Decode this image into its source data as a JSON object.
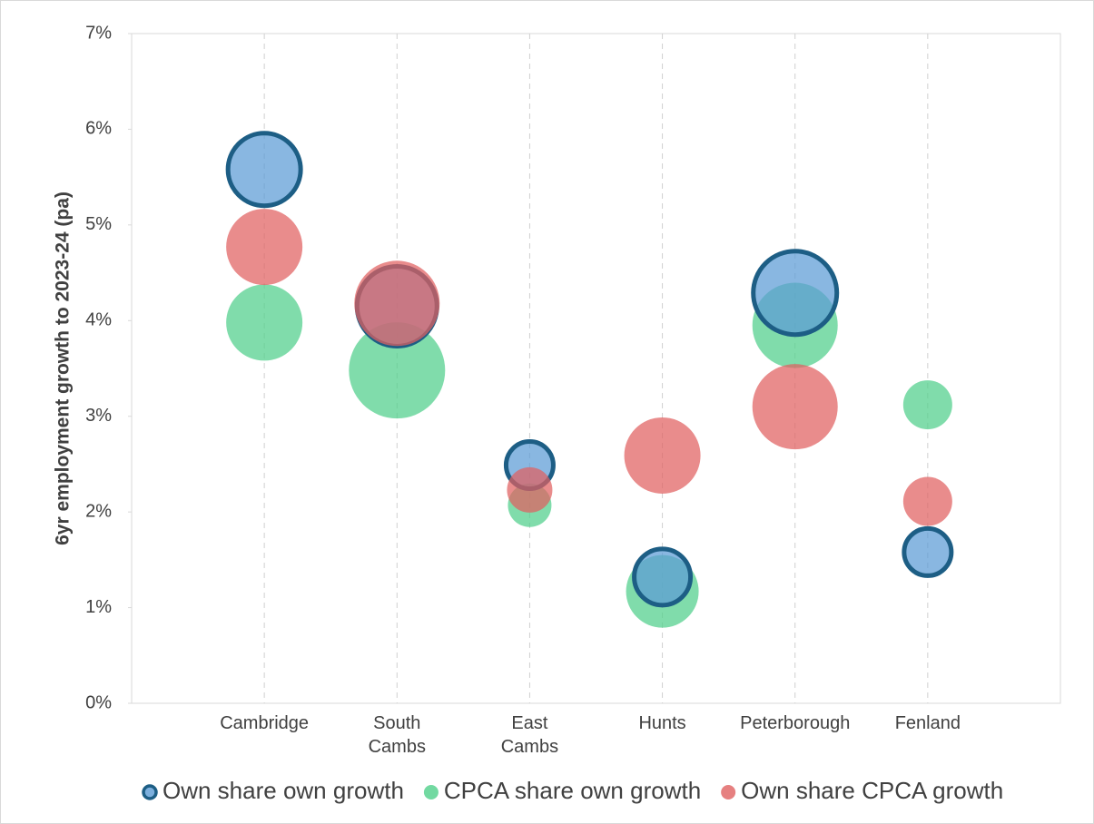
{
  "chart_data": {
    "type": "bubble",
    "y_label": "6yr employment growth to 2023-24 (pa)",
    "categories": [
      "Cambridge",
      "South\nCambs",
      "East\nCambs",
      "Hunts",
      "Peterborough",
      "Fenland"
    ],
    "ylim": [
      0,
      7
    ],
    "yticks": [
      {
        "value": 0,
        "label": "0%"
      },
      {
        "value": 1,
        "label": "1%"
      },
      {
        "value": 2,
        "label": "2%"
      },
      {
        "value": 3,
        "label": "3%"
      },
      {
        "value": 4,
        "label": "4%"
      },
      {
        "value": 5,
        "label": "5%"
      },
      {
        "value": 6,
        "label": "6%"
      },
      {
        "value": 7,
        "label": "7%"
      }
    ],
    "grid": true,
    "legend": "bottom",
    "series": [
      {
        "name": "Own share own growth",
        "color": "#5b9bd5",
        "outline": "#1d5e85",
        "values": [
          5.58,
          4.15,
          2.49,
          1.32,
          4.29,
          1.58
        ],
        "sizes": [
          40,
          44,
          26,
          31,
          46,
          26
        ]
      },
      {
        "name": "CPCA share own growth",
        "color": "#4fcf8a",
        "values": [
          3.98,
          3.48,
          2.07,
          1.17,
          3.95,
          3.12
        ],
        "sizes": [
          42,
          53,
          24,
          40,
          47,
          27
        ]
      },
      {
        "name": "Own share CPCA growth",
        "color": "#e06060",
        "values": [
          4.77,
          4.18,
          2.23,
          2.59,
          3.1,
          2.11
        ],
        "sizes": [
          42,
          47,
          25,
          42,
          47,
          27
        ]
      }
    ]
  }
}
